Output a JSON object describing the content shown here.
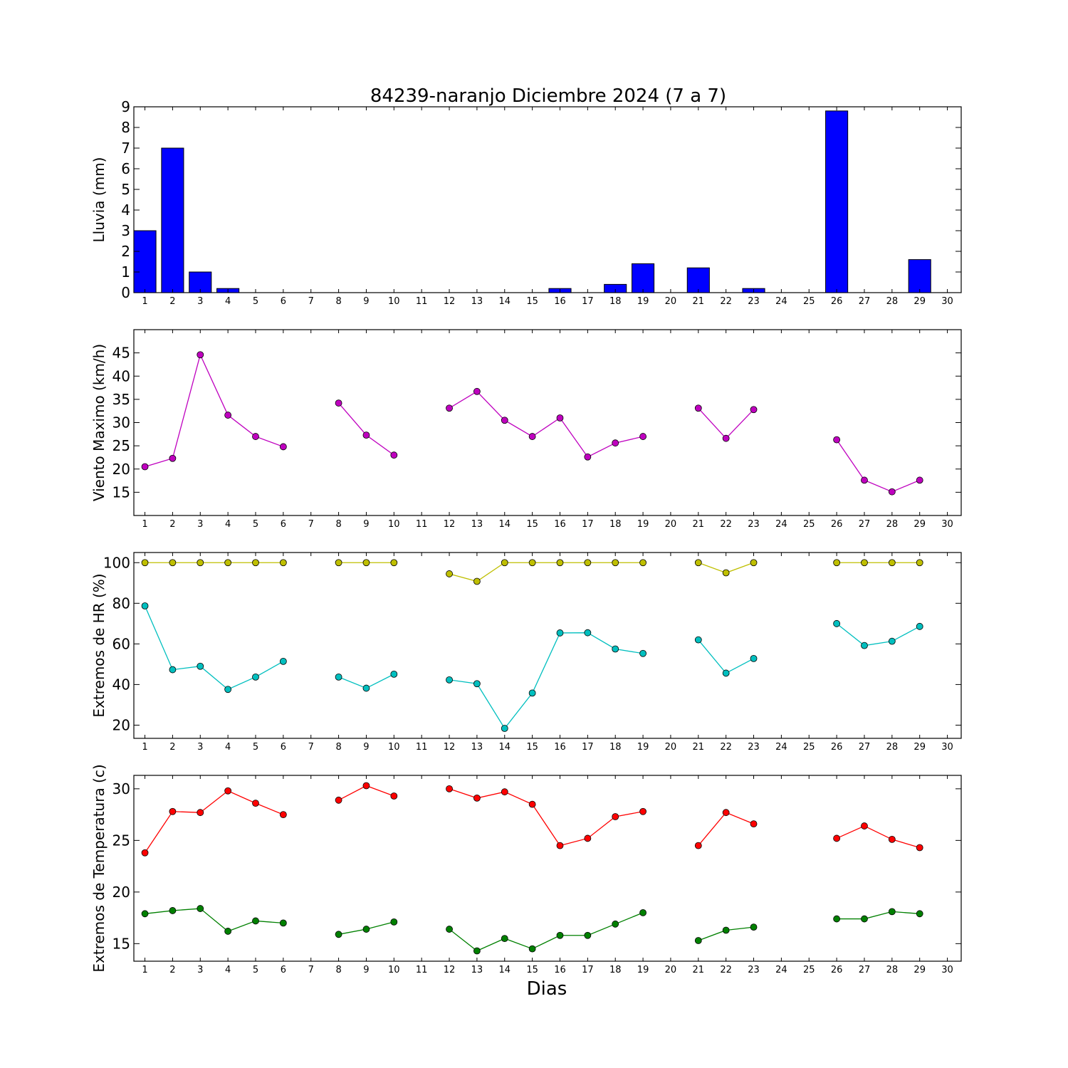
{
  "title": "84239-naranjo Diciembre 2024  (7 a 7)",
  "xlabel": "Dias",
  "chart_data": [
    {
      "type": "bar",
      "id": "rain",
      "ylabel": "Lluvia (mm)",
      "x": [
        1,
        2,
        3,
        4,
        5,
        6,
        7,
        8,
        9,
        10,
        11,
        12,
        13,
        14,
        15,
        16,
        17,
        18,
        19,
        20,
        21,
        22,
        23,
        24,
        25,
        26,
        27,
        28,
        29,
        30
      ],
      "values": [
        3.0,
        7.0,
        1.0,
        0.2,
        0,
        0,
        0,
        0,
        0,
        0,
        0,
        0,
        0,
        0,
        0,
        0.2,
        0,
        0.4,
        1.4,
        null,
        1.2,
        0,
        0.2,
        null,
        null,
        8.8,
        0,
        0,
        1.6,
        null
      ],
      "color": "#0000ff",
      "xlim": [
        0.6,
        30.5
      ],
      "ylim": [
        0,
        9
      ],
      "xticks": [
        1,
        2,
        3,
        4,
        5,
        6,
        7,
        8,
        9,
        10,
        11,
        12,
        13,
        14,
        15,
        16,
        17,
        18,
        19,
        20,
        21,
        22,
        23,
        24,
        25,
        26,
        27,
        28,
        29,
        30
      ],
      "yticks": [
        0,
        1,
        2,
        3,
        4,
        5,
        6,
        7,
        8,
        9
      ]
    },
    {
      "type": "line",
      "id": "wind",
      "ylabel": "Viento Maximo (km/h)",
      "x": [
        1,
        2,
        3,
        4,
        5,
        6,
        7,
        8,
        9,
        10,
        11,
        12,
        13,
        14,
        15,
        16,
        17,
        18,
        19,
        20,
        21,
        22,
        23,
        24,
        25,
        26,
        27,
        28,
        29,
        30
      ],
      "series": [
        {
          "values": [
            20.5,
            22.3,
            44.6,
            31.6,
            27.0,
            24.8,
            null,
            34.2,
            27.3,
            23.0,
            null,
            33.1,
            36.7,
            30.5,
            27.0,
            31.0,
            22.6,
            25.6,
            27.0,
            null,
            33.1,
            26.6,
            32.8,
            null,
            null,
            26.3,
            17.6,
            15.1,
            17.6,
            null
          ],
          "color": "#bf00bf"
        }
      ],
      "xlim": [
        0.6,
        30.5
      ],
      "ylim": [
        10,
        50
      ],
      "xticks": [
        1,
        2,
        3,
        4,
        5,
        6,
        7,
        8,
        9,
        10,
        11,
        12,
        13,
        14,
        15,
        16,
        17,
        18,
        19,
        20,
        21,
        22,
        23,
        24,
        25,
        26,
        27,
        28,
        29,
        30
      ],
      "yticks": [
        15,
        20,
        25,
        30,
        35,
        40,
        45
      ]
    },
    {
      "type": "line",
      "id": "humidity",
      "ylabel": "Extremos de HR (%)",
      "x": [
        1,
        2,
        3,
        4,
        5,
        6,
        7,
        8,
        9,
        10,
        11,
        12,
        13,
        14,
        15,
        16,
        17,
        18,
        19,
        20,
        21,
        22,
        23,
        24,
        25,
        26,
        27,
        28,
        29,
        30
      ],
      "series": [
        {
          "values": [
            100,
            100,
            100,
            100,
            100,
            100,
            null,
            100,
            100,
            100,
            null,
            94.5,
            90.8,
            100,
            100,
            100,
            100,
            100,
            100,
            null,
            100,
            95,
            100,
            null,
            null,
            100,
            100,
            100,
            100,
            null
          ],
          "color": "#bfbf00"
        },
        {
          "values": [
            78.7,
            47.3,
            49.0,
            37.6,
            43.7,
            51.4,
            null,
            43.7,
            38.2,
            45.1,
            null,
            42.3,
            40.4,
            18.4,
            35.8,
            65.4,
            65.5,
            57.5,
            55.3,
            null,
            62.0,
            45.6,
            52.8,
            null,
            null,
            70.0,
            59.2,
            61.3,
            68.6,
            null
          ],
          "color": "#00bfbf"
        }
      ],
      "xlim": [
        0.6,
        30.5
      ],
      "ylim": [
        13.5,
        105
      ],
      "xticks": [
        1,
        2,
        3,
        4,
        5,
        6,
        7,
        8,
        9,
        10,
        11,
        12,
        13,
        14,
        15,
        16,
        17,
        18,
        19,
        20,
        21,
        22,
        23,
        24,
        25,
        26,
        27,
        28,
        29,
        30
      ],
      "yticks": [
        20,
        40,
        60,
        80,
        100
      ]
    },
    {
      "type": "line",
      "id": "temperature",
      "ylabel": "Extremos de Temperatura (c)",
      "x": [
        1,
        2,
        3,
        4,
        5,
        6,
        7,
        8,
        9,
        10,
        11,
        12,
        13,
        14,
        15,
        16,
        17,
        18,
        19,
        20,
        21,
        22,
        23,
        24,
        25,
        26,
        27,
        28,
        29,
        30
      ],
      "series": [
        {
          "values": [
            23.8,
            27.8,
            27.7,
            29.8,
            28.6,
            27.5,
            null,
            28.9,
            30.3,
            29.3,
            null,
            30.0,
            29.1,
            29.7,
            28.5,
            24.5,
            25.2,
            27.3,
            27.8,
            null,
            24.5,
            27.7,
            26.6,
            null,
            null,
            25.2,
            26.4,
            25.1,
            24.3,
            null
          ],
          "color": "#ff0000"
        },
        {
          "values": [
            17.9,
            18.2,
            18.4,
            16.2,
            17.2,
            17.0,
            null,
            15.9,
            16.4,
            17.1,
            null,
            16.4,
            14.3,
            15.5,
            14.5,
            15.8,
            15.8,
            16.9,
            18.0,
            null,
            15.3,
            16.3,
            16.6,
            null,
            null,
            17.4,
            17.4,
            18.1,
            17.9,
            null
          ],
          "color": "#008000"
        }
      ],
      "xlim": [
        0.6,
        30.5
      ],
      "ylim": [
        13.3,
        31.3
      ],
      "xticks": [
        1,
        2,
        3,
        4,
        5,
        6,
        7,
        8,
        9,
        10,
        11,
        12,
        13,
        14,
        15,
        16,
        17,
        18,
        19,
        20,
        21,
        22,
        23,
        24,
        25,
        26,
        27,
        28,
        29,
        30
      ],
      "yticks": [
        15,
        20,
        25,
        30
      ]
    }
  ]
}
